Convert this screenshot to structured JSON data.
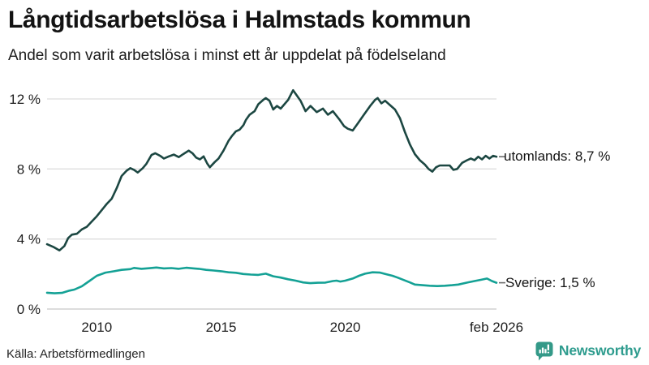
{
  "header": {
    "title": "Långtidsarbetslösa i Halmstads kommun",
    "subtitle": "Andel som varit arbetslösa i minst ett år uppdelat på födelseland"
  },
  "chart_data": {
    "type": "line",
    "title": "Långtidsarbetslösa i Halmstads kommun",
    "subtitle": "Andel som varit arbetslösa i minst ett år uppdelat på födelseland",
    "grid": true,
    "legend_position": "end-of-line-labels",
    "ylabel": "",
    "xlabel": "",
    "x_axis": {
      "range": [
        2008.0,
        2026.083
      ],
      "ticks": [
        {
          "value": 2010,
          "label": "2010"
        },
        {
          "value": 2015,
          "label": "2015"
        },
        {
          "value": 2020,
          "label": "2020"
        },
        {
          "value": 2026.083,
          "label": "feb 2026"
        }
      ]
    },
    "y_axis": {
      "range": [
        0,
        13
      ],
      "unit": "%",
      "ticks": [
        {
          "value": 0,
          "label": "0 %"
        },
        {
          "value": 4,
          "label": "4 %"
        },
        {
          "value": 8,
          "label": "8 %"
        },
        {
          "value": 12,
          "label": "12 %"
        }
      ]
    },
    "series": [
      {
        "name": "utomlands",
        "end_label": "utomlands: 8,7 %",
        "end_value": 8.7,
        "color": "#1c4742",
        "points": [
          [
            2008.0,
            3.7
          ],
          [
            2008.25,
            3.55
          ],
          [
            2008.5,
            3.35
          ],
          [
            2008.7,
            3.6
          ],
          [
            2008.85,
            4.05
          ],
          [
            2009.0,
            4.25
          ],
          [
            2009.2,
            4.3
          ],
          [
            2009.4,
            4.55
          ],
          [
            2009.6,
            4.7
          ],
          [
            2009.8,
            5.0
          ],
          [
            2010.0,
            5.3
          ],
          [
            2010.2,
            5.65
          ],
          [
            2010.4,
            6.0
          ],
          [
            2010.6,
            6.3
          ],
          [
            2010.8,
            6.9
          ],
          [
            2011.0,
            7.6
          ],
          [
            2011.2,
            7.9
          ],
          [
            2011.35,
            8.05
          ],
          [
            2011.5,
            7.95
          ],
          [
            2011.65,
            7.8
          ],
          [
            2011.85,
            8.05
          ],
          [
            2012.0,
            8.3
          ],
          [
            2012.2,
            8.8
          ],
          [
            2012.35,
            8.9
          ],
          [
            2012.55,
            8.75
          ],
          [
            2012.7,
            8.6
          ],
          [
            2012.9,
            8.72
          ],
          [
            2013.1,
            8.82
          ],
          [
            2013.3,
            8.68
          ],
          [
            2013.5,
            8.87
          ],
          [
            2013.7,
            9.05
          ],
          [
            2013.85,
            8.9
          ],
          [
            2014.0,
            8.65
          ],
          [
            2014.15,
            8.55
          ],
          [
            2014.3,
            8.72
          ],
          [
            2014.45,
            8.3
          ],
          [
            2014.55,
            8.1
          ],
          [
            2014.75,
            8.4
          ],
          [
            2014.9,
            8.6
          ],
          [
            2015.1,
            9.05
          ],
          [
            2015.3,
            9.6
          ],
          [
            2015.45,
            9.9
          ],
          [
            2015.6,
            10.15
          ],
          [
            2015.75,
            10.25
          ],
          [
            2015.9,
            10.5
          ],
          [
            2016.0,
            10.8
          ],
          [
            2016.15,
            11.1
          ],
          [
            2016.35,
            11.3
          ],
          [
            2016.5,
            11.7
          ],
          [
            2016.7,
            11.95
          ],
          [
            2016.8,
            12.05
          ],
          [
            2016.95,
            11.9
          ],
          [
            2017.1,
            11.4
          ],
          [
            2017.25,
            11.6
          ],
          [
            2017.4,
            11.45
          ],
          [
            2017.55,
            11.7
          ],
          [
            2017.7,
            11.95
          ],
          [
            2017.9,
            12.5
          ],
          [
            2018.05,
            12.2
          ],
          [
            2018.2,
            11.9
          ],
          [
            2018.4,
            11.3
          ],
          [
            2018.6,
            11.6
          ],
          [
            2018.85,
            11.25
          ],
          [
            2019.1,
            11.45
          ],
          [
            2019.3,
            11.1
          ],
          [
            2019.5,
            11.3
          ],
          [
            2019.75,
            10.85
          ],
          [
            2019.95,
            10.45
          ],
          [
            2020.1,
            10.3
          ],
          [
            2020.3,
            10.2
          ],
          [
            2020.5,
            10.6
          ],
          [
            2020.75,
            11.1
          ],
          [
            2021.0,
            11.6
          ],
          [
            2021.2,
            11.95
          ],
          [
            2021.3,
            12.05
          ],
          [
            2021.45,
            11.75
          ],
          [
            2021.6,
            11.9
          ],
          [
            2021.8,
            11.65
          ],
          [
            2022.0,
            11.4
          ],
          [
            2022.2,
            10.9
          ],
          [
            2022.4,
            10.1
          ],
          [
            2022.6,
            9.4
          ],
          [
            2022.8,
            8.85
          ],
          [
            2023.0,
            8.5
          ],
          [
            2023.2,
            8.25
          ],
          [
            2023.35,
            8.0
          ],
          [
            2023.5,
            7.85
          ],
          [
            2023.65,
            8.1
          ],
          [
            2023.8,
            8.2
          ],
          [
            2024.0,
            8.2
          ],
          [
            2024.2,
            8.2
          ],
          [
            2024.35,
            7.95
          ],
          [
            2024.5,
            8.0
          ],
          [
            2024.7,
            8.35
          ],
          [
            2024.9,
            8.5
          ],
          [
            2025.05,
            8.6
          ],
          [
            2025.2,
            8.5
          ],
          [
            2025.35,
            8.7
          ],
          [
            2025.5,
            8.55
          ],
          [
            2025.65,
            8.75
          ],
          [
            2025.8,
            8.6
          ],
          [
            2025.95,
            8.75
          ],
          [
            2026.083,
            8.7
          ]
        ]
      },
      {
        "name": "sverige",
        "end_label": "Sverige: 1,5 %",
        "end_value": 1.5,
        "color": "#14a195",
        "points": [
          [
            2008.0,
            0.93
          ],
          [
            2008.3,
            0.9
          ],
          [
            2008.6,
            0.92
          ],
          [
            2008.9,
            1.05
          ],
          [
            2009.1,
            1.11
          ],
          [
            2009.4,
            1.3
          ],
          [
            2009.7,
            1.6
          ],
          [
            2010.0,
            1.9
          ],
          [
            2010.35,
            2.08
          ],
          [
            2010.7,
            2.16
          ],
          [
            2011.0,
            2.24
          ],
          [
            2011.35,
            2.28
          ],
          [
            2011.5,
            2.35
          ],
          [
            2011.8,
            2.3
          ],
          [
            2012.1,
            2.33
          ],
          [
            2012.4,
            2.37
          ],
          [
            2012.7,
            2.32
          ],
          [
            2013.0,
            2.34
          ],
          [
            2013.3,
            2.3
          ],
          [
            2013.6,
            2.36
          ],
          [
            2013.9,
            2.32
          ],
          [
            2014.1,
            2.3
          ],
          [
            2014.4,
            2.24
          ],
          [
            2014.7,
            2.2
          ],
          [
            2015.0,
            2.16
          ],
          [
            2015.3,
            2.1
          ],
          [
            2015.6,
            2.07
          ],
          [
            2015.9,
            2.0
          ],
          [
            2016.2,
            1.97
          ],
          [
            2016.5,
            1.95
          ],
          [
            2016.8,
            2.02
          ],
          [
            2017.1,
            1.87
          ],
          [
            2017.4,
            1.8
          ],
          [
            2017.7,
            1.7
          ],
          [
            2018.0,
            1.62
          ],
          [
            2018.3,
            1.52
          ],
          [
            2018.6,
            1.48
          ],
          [
            2018.9,
            1.5
          ],
          [
            2019.2,
            1.51
          ],
          [
            2019.5,
            1.6
          ],
          [
            2019.65,
            1.62
          ],
          [
            2019.8,
            1.57
          ],
          [
            2020.0,
            1.62
          ],
          [
            2020.3,
            1.74
          ],
          [
            2020.55,
            1.9
          ],
          [
            2020.8,
            2.02
          ],
          [
            2021.1,
            2.1
          ],
          [
            2021.4,
            2.08
          ],
          [
            2021.7,
            1.97
          ],
          [
            2021.9,
            1.9
          ],
          [
            2022.1,
            1.8
          ],
          [
            2022.4,
            1.63
          ],
          [
            2022.6,
            1.52
          ],
          [
            2022.8,
            1.4
          ],
          [
            2023.1,
            1.36
          ],
          [
            2023.4,
            1.33
          ],
          [
            2023.7,
            1.31
          ],
          [
            2024.0,
            1.33
          ],
          [
            2024.3,
            1.36
          ],
          [
            2024.55,
            1.4
          ],
          [
            2024.9,
            1.51
          ],
          [
            2025.2,
            1.6
          ],
          [
            2025.45,
            1.67
          ],
          [
            2025.7,
            1.74
          ],
          [
            2025.9,
            1.6
          ],
          [
            2026.083,
            1.5
          ]
        ]
      }
    ]
  },
  "footer": {
    "source": "Källa: Arbetsförmedlingen",
    "brand": "Newsworthy"
  },
  "icons": {
    "brand_icon": "bar-chart-speech-bubble-icon"
  },
  "colors": {
    "grid": "#dedede",
    "baseline": "#c6c6c6",
    "text": "#1e1e1e",
    "leader_dash": "#6b6b6b",
    "brand_teal": "#2e9c8e",
    "brand_icon_teal": "#339988",
    "series_utomlands": "#1c4742",
    "series_sverige": "#14a195"
  }
}
